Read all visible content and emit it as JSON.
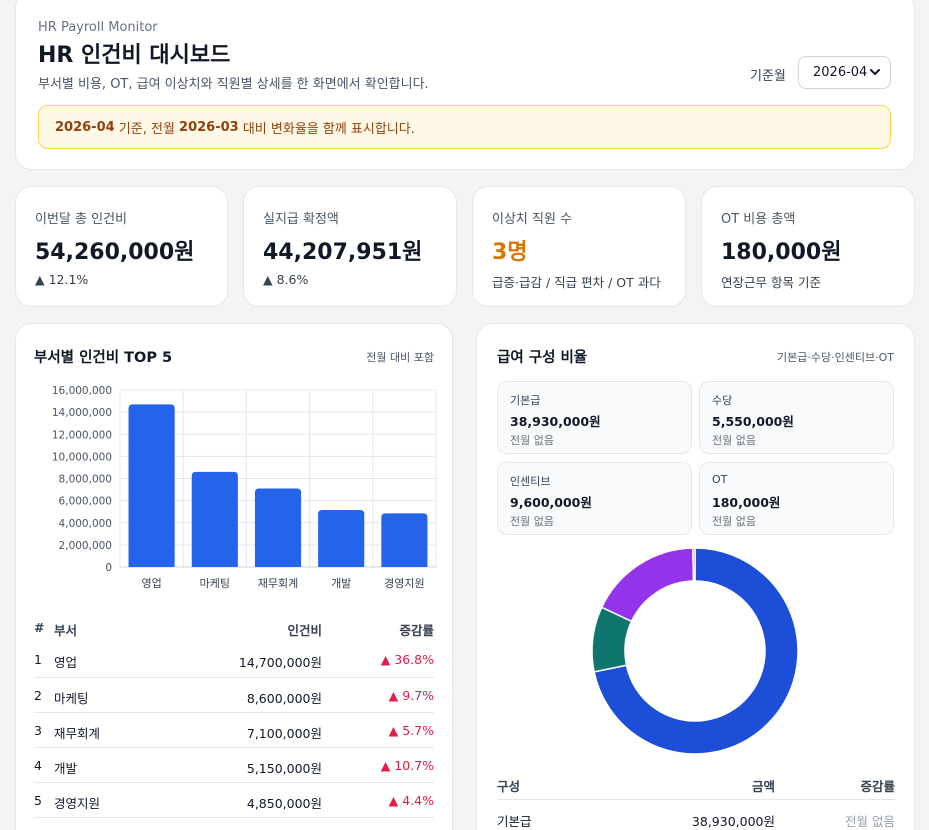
{
  "header": {
    "brand": "HR Payroll Monitor",
    "title": "HR 인건비 대시보드",
    "subtitle": "부서별 비용, OT, 급여 이상치와 직원별 상세를 한 화면에서 확인합니다.",
    "month_label": "기준월",
    "month_value": "2026-04",
    "notice": {
      "current": "2026-04",
      "text1": " 기준, 전월 ",
      "previous": "2026-03",
      "text2": " 대비 변화율을 함께 표시합니다."
    }
  },
  "kpis": [
    {
      "label": "이번달 총 인건비",
      "value": "54,260,000원",
      "sub": "▲ 12.1%"
    },
    {
      "label": "실지급 확정액",
      "value": "44,207,951원",
      "sub": "▲ 8.6%"
    },
    {
      "label": "이상치 직원 수",
      "value": "3명",
      "sub": "급증·급감 / 직급 편차 / OT 과다"
    },
    {
      "label": "OT 비용 총액",
      "value": "180,000원",
      "sub": "연장근무 항목 기준"
    }
  ],
  "dept": {
    "title": "부서별 인건비 TOP 5",
    "note": "전월 대비 포함",
    "columns": [
      "#",
      "부서",
      "인건비",
      "증감률"
    ],
    "rows": [
      {
        "rank": "1",
        "name": "영업",
        "amount": "14,700,000원",
        "rate": "▲ 36.8%"
      },
      {
        "rank": "2",
        "name": "마케팅",
        "amount": "8,600,000원",
        "rate": "▲ 9.7%"
      },
      {
        "rank": "3",
        "name": "재무회계",
        "amount": "7,100,000원",
        "rate": "▲ 5.7%"
      },
      {
        "rank": "4",
        "name": "개발",
        "amount": "5,150,000원",
        "rate": "▲ 10.7%"
      },
      {
        "rank": "5",
        "name": "경영지원",
        "amount": "4,850,000원",
        "rate": "▲ 4.4%"
      }
    ]
  },
  "comp": {
    "title": "급여 구성 비율",
    "note": "기본급·수당·인센티브·OT",
    "boxes": [
      {
        "name": "기본급",
        "amount": "38,930,000원",
        "rate": "전월 없음"
      },
      {
        "name": "수당",
        "amount": "5,550,000원",
        "rate": "전월 없음"
      },
      {
        "name": "인센티브",
        "amount": "9,600,000원",
        "rate": "전월 없음"
      },
      {
        "name": "OT",
        "amount": "180,000원",
        "rate": "전월 없음"
      }
    ],
    "columns": [
      "구성",
      "금액",
      "증감률"
    ],
    "rows": [
      {
        "name": "기본급",
        "amount": "38,930,000원",
        "rate": "전월 없음"
      }
    ]
  },
  "colors": {
    "bar": "#2563eb",
    "up": "#e11d48",
    "warning": "#d97706",
    "donut_base": "#1d4ed8",
    "donut_allowance": "#0f766e",
    "donut_incentive": "#9333ea",
    "donut_ot": "#ea580c"
  },
  "chart_data": [
    {
      "type": "bar",
      "categories": [
        "영업",
        "마케팅",
        "재무회계",
        "개발",
        "경영지원"
      ],
      "values": [
        14700000,
        8600000,
        7100000,
        5150000,
        4850000
      ],
      "ylim": [
        0,
        16000000
      ],
      "yticks": [
        "16,000,000",
        "14,000,000",
        "12,000,000",
        "10,000,000",
        "8,000,000",
        "6,000,000",
        "4,000,000",
        "2,000,000",
        "0"
      ],
      "grid": true
    },
    {
      "type": "pie",
      "categories": [
        "기본급",
        "수당",
        "인센티브",
        "OT"
      ],
      "values": [
        38930000,
        5550000,
        9600000,
        180000
      ],
      "donut": true
    }
  ]
}
